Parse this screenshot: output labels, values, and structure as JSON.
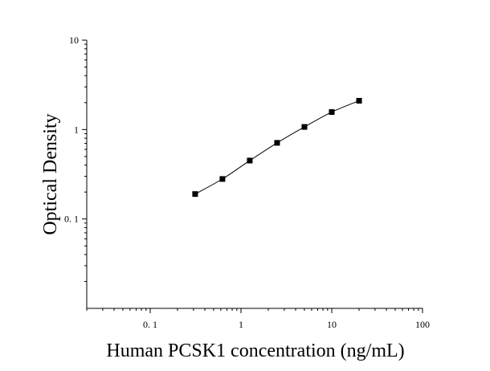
{
  "chart_data": {
    "type": "scatter",
    "x_scale": "log",
    "y_scale": "log",
    "xlabel": "Human PCSK1 concentration (ng/mL)",
    "ylabel": "Optical Density",
    "xlim": [
      0.02,
      100
    ],
    "ylim": [
      0.01,
      10
    ],
    "x_ticks": [
      {
        "value": 0.1,
        "label": "0. 1"
      },
      {
        "value": 1,
        "label": "1"
      },
      {
        "value": 10,
        "label": "10"
      },
      {
        "value": 100,
        "label": "100"
      }
    ],
    "y_ticks": [
      {
        "value": 0.1,
        "label": "0. 1"
      },
      {
        "value": 1,
        "label": "1"
      },
      {
        "value": 10,
        "label": "10"
      }
    ],
    "grid": false,
    "series": [
      {
        "x": [
          0.3125,
          0.625,
          1.25,
          2.5,
          5,
          10,
          20
        ],
        "y": [
          0.19,
          0.28,
          0.45,
          0.71,
          1.07,
          1.57,
          2.1
        ],
        "marker": "square",
        "line": "fitted curve",
        "color": "#000000"
      }
    ]
  }
}
